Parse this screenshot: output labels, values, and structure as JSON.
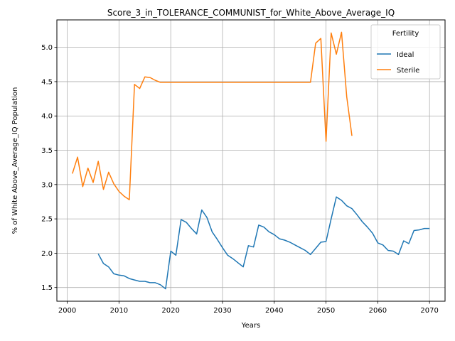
{
  "chart_data": {
    "type": "line",
    "title": "Score_3_in_TOLERANCE_COMMUNIST_for_White_Above_Average_IQ",
    "xlabel": "Years",
    "ylabel": "% of White Above_Average_IQ Population",
    "xlim": [
      1998,
      2073
    ],
    "ylim": [
      1.3,
      5.4
    ],
    "xticks": [
      2000,
      2010,
      2020,
      2030,
      2040,
      2050,
      2060,
      2070
    ],
    "yticks": [
      1.5,
      2.0,
      2.5,
      3.0,
      3.5,
      4.0,
      4.5,
      5.0
    ],
    "ytick_labels": [
      "1.5",
      "2.0",
      "2.5",
      "3.0",
      "3.5",
      "4.0",
      "4.5",
      "5.0"
    ],
    "grid": true,
    "legend": {
      "title": "Fertility",
      "position": "top-right"
    },
    "series": [
      {
        "name": "Ideal",
        "color": "#1f77b4",
        "x": [
          2006,
          2007,
          2008,
          2009,
          2010,
          2011,
          2012,
          2013,
          2014,
          2015,
          2016,
          2017,
          2018,
          2019,
          2020,
          2021,
          2022,
          2023,
          2024,
          2025,
          2026,
          2027,
          2028,
          2029,
          2030,
          2031,
          2032,
          2033,
          2034,
          2035,
          2036,
          2037,
          2038,
          2039,
          2040,
          2041,
          2042,
          2043,
          2044,
          2045,
          2046,
          2047,
          2048,
          2049,
          2050,
          2051,
          2052,
          2053,
          2054,
          2055,
          2056,
          2057,
          2058,
          2059,
          2060,
          2061,
          2062,
          2063,
          2064,
          2065,
          2066,
          2067,
          2068,
          2069,
          2070
        ],
        "y": [
          1.99,
          1.85,
          1.8,
          1.7,
          1.68,
          1.67,
          1.63,
          1.61,
          1.59,
          1.59,
          1.57,
          1.57,
          1.54,
          1.48,
          2.03,
          1.97,
          2.49,
          2.45,
          2.36,
          2.28,
          2.63,
          2.52,
          2.31,
          2.2,
          2.08,
          1.97,
          1.92,
          1.86,
          1.8,
          2.11,
          2.09,
          2.41,
          2.38,
          2.31,
          2.27,
          2.21,
          2.19,
          2.16,
          2.12,
          2.08,
          2.04,
          1.98,
          2.07,
          2.16,
          2.17,
          2.5,
          2.82,
          2.77,
          2.69,
          2.65,
          2.56,
          2.46,
          2.38,
          2.29,
          2.15,
          2.12,
          2.04,
          2.03,
          1.98,
          2.18,
          2.14,
          2.33,
          2.34,
          2.36,
          2.36
        ]
      },
      {
        "name": "Sterile",
        "color": "#ff7f0e",
        "x": [
          2001,
          2002,
          2003,
          2004,
          2005,
          2006,
          2007,
          2008,
          2009,
          2010,
          2011,
          2012,
          2013,
          2014,
          2015,
          2016,
          2017,
          2018,
          2019,
          2020,
          2021,
          2022,
          2023,
          2024,
          2025,
          2026,
          2027,
          2028,
          2029,
          2030,
          2031,
          2032,
          2033,
          2034,
          2035,
          2036,
          2037,
          2038,
          2039,
          2040,
          2041,
          2042,
          2043,
          2044,
          2045,
          2046,
          2047,
          2048,
          2049,
          2050,
          2051,
          2052,
          2053,
          2054,
          2055
        ],
        "y": [
          3.16,
          3.4,
          2.97,
          3.24,
          3.03,
          3.34,
          2.93,
          3.18,
          3.01,
          2.9,
          2.83,
          2.78,
          4.46,
          4.4,
          4.57,
          4.56,
          4.52,
          4.49,
          4.49,
          4.49,
          4.49,
          4.49,
          4.49,
          4.49,
          4.49,
          4.49,
          4.49,
          4.49,
          4.49,
          4.49,
          4.49,
          4.49,
          4.49,
          4.49,
          4.49,
          4.49,
          4.49,
          4.49,
          4.49,
          4.49,
          4.49,
          4.49,
          4.49,
          4.49,
          4.49,
          4.49,
          4.49,
          5.06,
          5.13,
          3.63,
          5.21,
          4.9,
          5.22,
          4.28,
          3.71
        ]
      }
    ]
  }
}
